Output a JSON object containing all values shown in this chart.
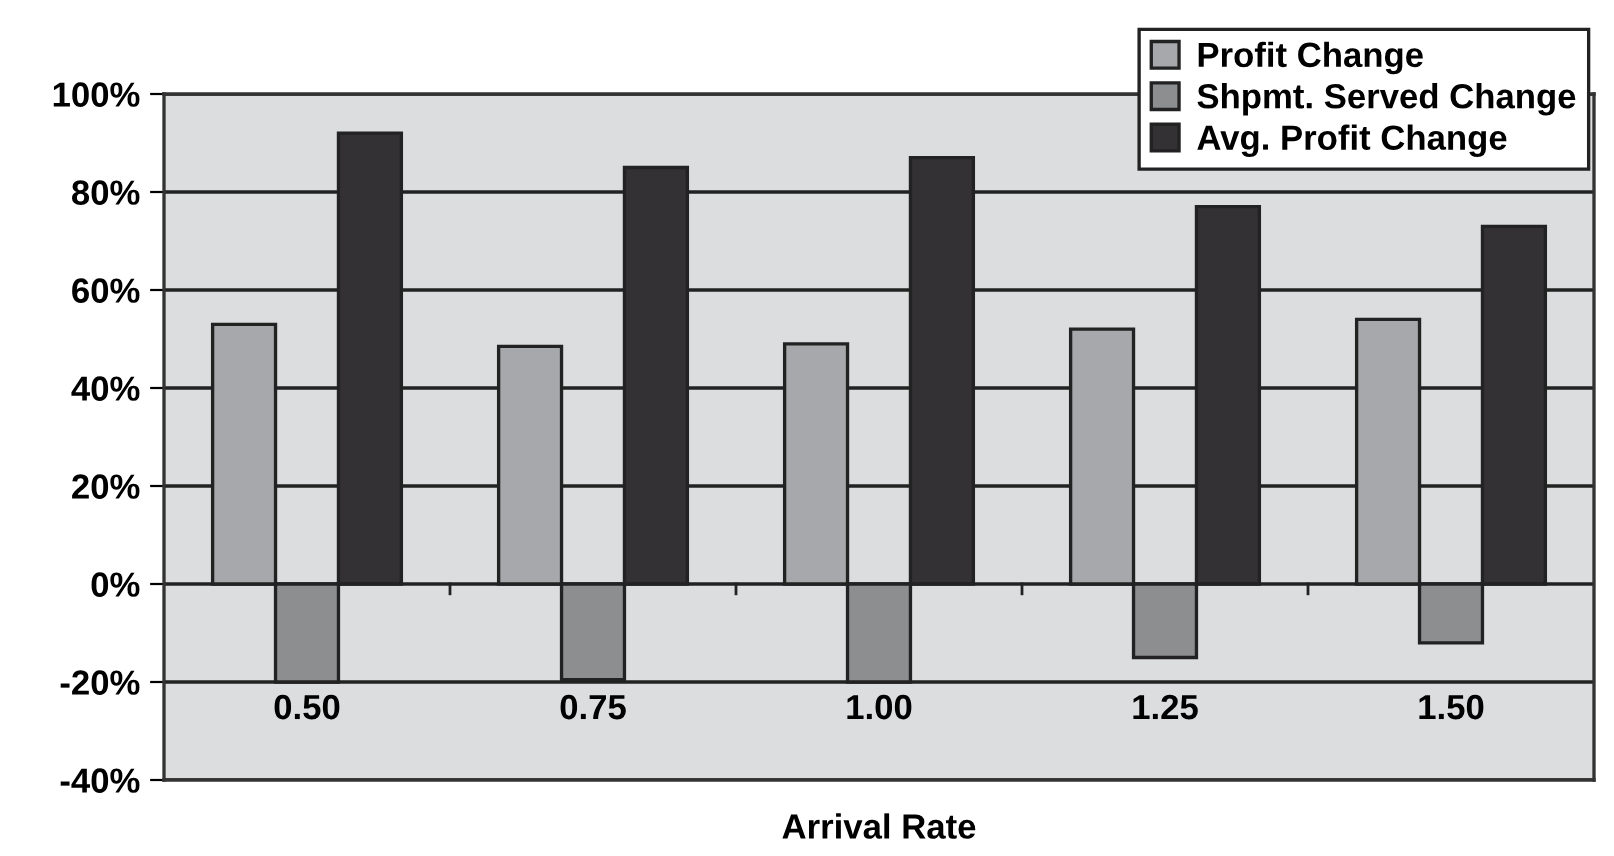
{
  "chart_data": {
    "type": "bar",
    "xlabel": "Arrival Rate",
    "categories": [
      "0.50",
      "0.75",
      "1.00",
      "1.25",
      "1.50"
    ],
    "series": [
      {
        "name": "Profit Change",
        "color": "#a7a8ab",
        "values": [
          53,
          48.5,
          49,
          52,
          54
        ]
      },
      {
        "name": "Shpmt. Served Change",
        "color": "#8d8e90",
        "values": [
          -20,
          -19.5,
          -20,
          -15,
          -12
        ]
      },
      {
        "name": "Avg. Profit Change",
        "color": "#333133",
        "values": [
          92,
          85,
          87,
          77,
          73
        ]
      }
    ],
    "ylim": [
      -40,
      100
    ],
    "yticks": [
      {
        "value": -40,
        "label": "-40%"
      },
      {
        "value": -20,
        "label": "-20%"
      },
      {
        "value": 0,
        "label": "0%"
      },
      {
        "value": 20,
        "label": "20%"
      },
      {
        "value": 40,
        "label": "40%"
      },
      {
        "value": 60,
        "label": "60%"
      },
      {
        "value": 80,
        "label": "80%"
      },
      {
        "value": 100,
        "label": "100%"
      }
    ],
    "grid": "y",
    "legend": "top right"
  }
}
